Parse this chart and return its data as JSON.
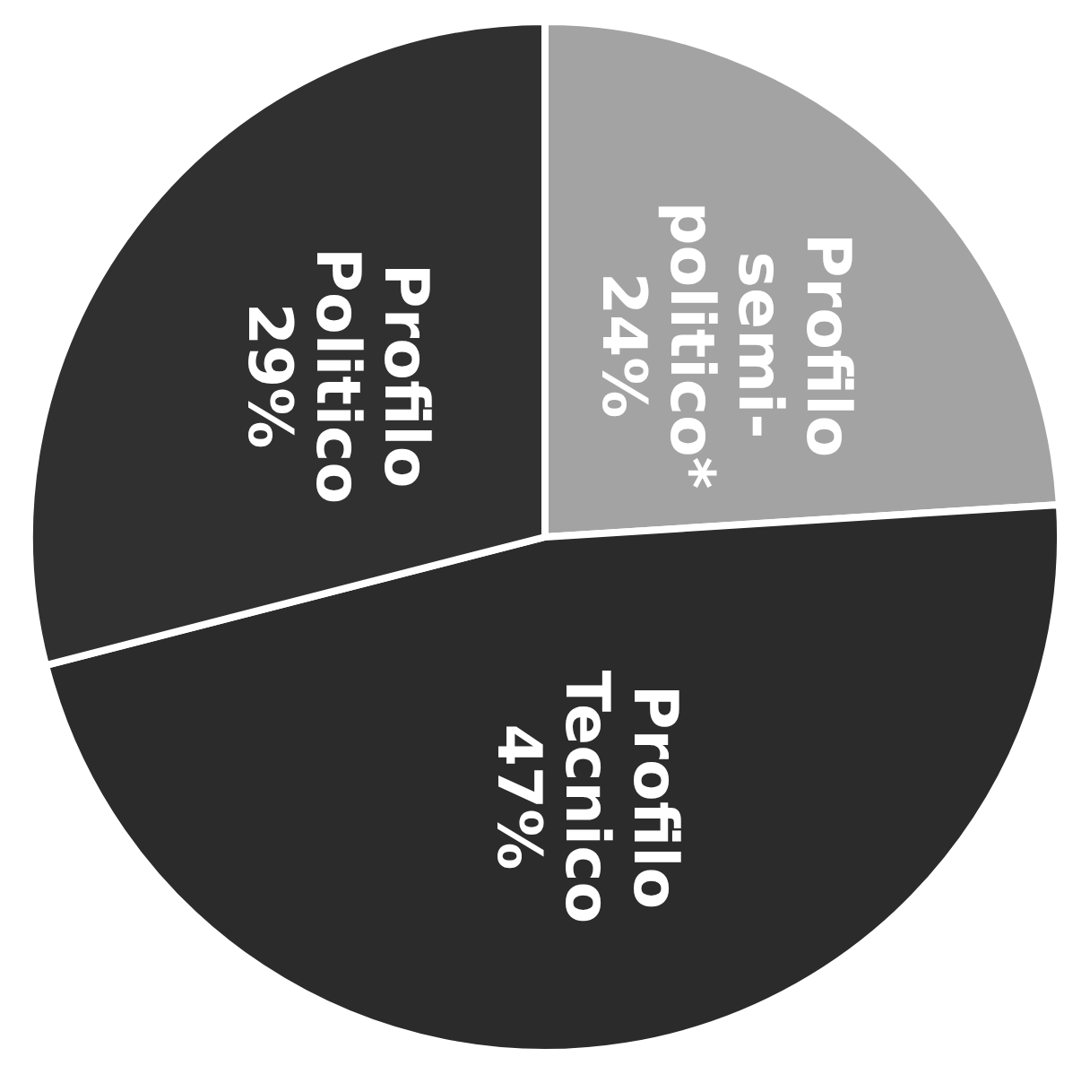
{
  "chart_data": {
    "type": "pie",
    "categories": [
      "Profilo semi-politico*",
      "Profilo Tecnico",
      "Profilo Politico"
    ],
    "values": [
      24,
      47,
      29
    ],
    "value_labels": [
      "24%",
      "47%",
      "29%"
    ],
    "colors": [
      "#a3a3a3",
      "#2b2b2b",
      "#303030"
    ]
  }
}
